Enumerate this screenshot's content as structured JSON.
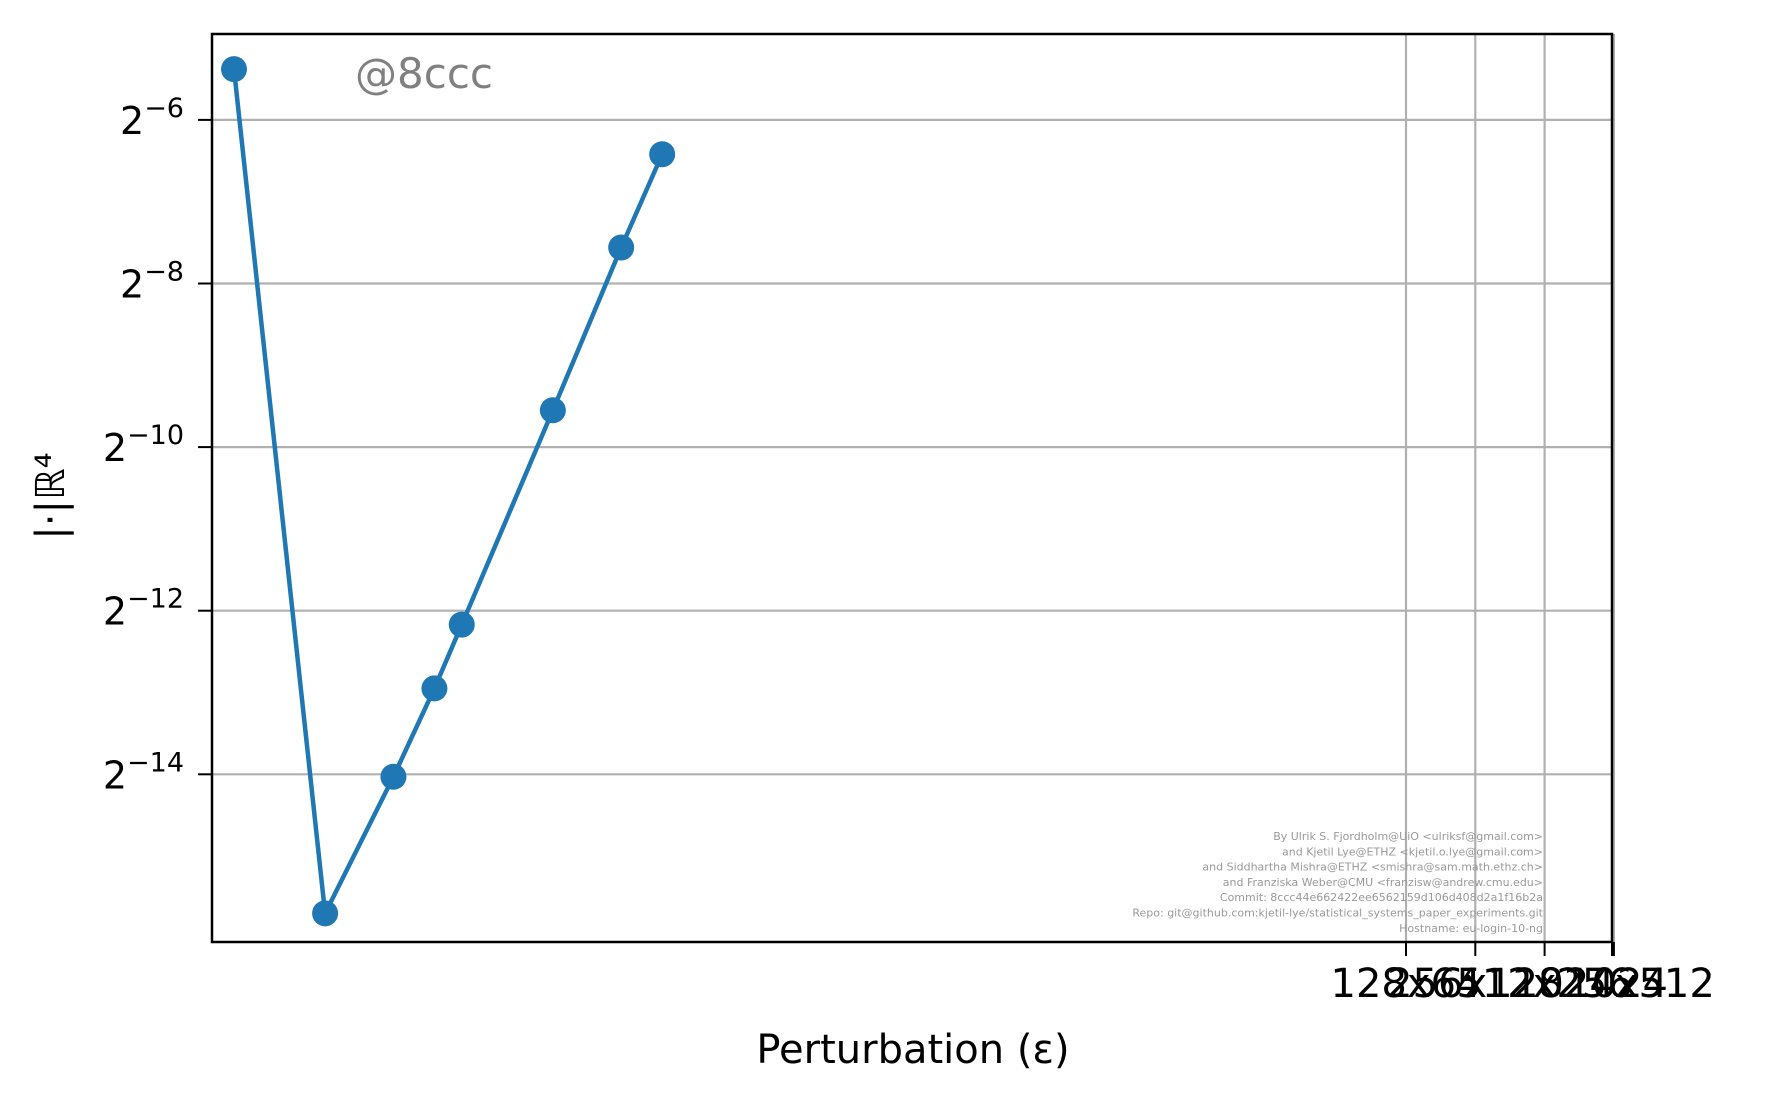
{
  "chart_data": {
    "type": "line",
    "title": "",
    "xlabel": "Perturbation (ε)",
    "ylabel": "|·|ℝ⁴",
    "y_scale": "log2",
    "ylim_exponent": [
      -16.05,
      -4.95
    ],
    "grid": true,
    "series_color": "#1f77b4",
    "grid_color": "#b0b0b0",
    "series": [
      {
        "marker": "circle",
        "points": [
          {
            "x_index": 0.0,
            "y_exponent": -5.38
          },
          {
            "x_index": 1.0,
            "y_exponent": -15.7
          },
          {
            "x_index": 1.75,
            "y_exponent": -14.03
          },
          {
            "x_index": 2.2,
            "y_exponent": -12.95
          },
          {
            "x_index": 2.5,
            "y_exponent": -12.17
          },
          {
            "x_index": 3.5,
            "y_exponent": -9.55
          },
          {
            "x_index": 4.25,
            "y_exponent": -7.56
          },
          {
            "x_index": 4.7,
            "y_exponent": -6.42
          }
        ]
      }
    ],
    "y_ticks": [
      {
        "base": "2",
        "exp": "−6",
        "value": -6
      },
      {
        "base": "2",
        "exp": "−8",
        "value": -8
      },
      {
        "base": "2",
        "exp": "−10",
        "value": -10
      },
      {
        "base": "2",
        "exp": "−12",
        "value": -12
      },
      {
        "base": "2",
        "exp": "−14",
        "value": -14
      }
    ],
    "x_ticks": [
      {
        "label": "128x64",
        "value": 128
      },
      {
        "label": "256x128",
        "value": 256
      },
      {
        "label": "512x256",
        "value": 512
      },
      {
        "label": "1024x512",
        "value": 1024
      }
    ],
    "x_last_tick_label": "1024",
    "annotations": {
      "watermark": "@8ccc",
      "credits": [
        "By Ulrik S. Fjordholm@UiO <ulriksf@gmail.com>",
        "and Kjetil Lye@ETHZ <kjetil.o.lye@gmail.com>",
        "and Siddhartha Mishra@ETHZ <smishra@sam.math.ethz.ch>",
        "and Franziska Weber@CMU <franzisw@andrew.cmu.edu>",
        "Commit: 8ccc44e662422ee6562159d106d408d2a1f16b2a",
        "Repo: git@github.com:kjetil-lye/statistical_systems_paper_experiments.git",
        "Hostname: eu-login-10-ng"
      ]
    }
  }
}
